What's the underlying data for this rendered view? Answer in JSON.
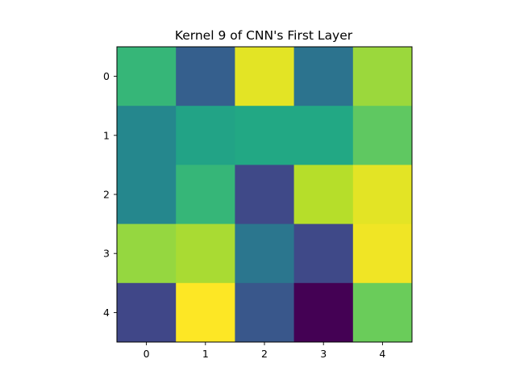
{
  "chart_data": {
    "type": "heatmap",
    "title": "Kernel 9 of CNN's First Layer",
    "colormap": "viridis",
    "xlabel": "",
    "ylabel": "",
    "x_ticks": [
      "0",
      "1",
      "2",
      "3",
      "4"
    ],
    "y_ticks": [
      "0",
      "1",
      "2",
      "3",
      "4"
    ],
    "grid": false,
    "values": [
      [
        0.66,
        0.3,
        0.96,
        0.38,
        0.85
      ],
      [
        0.46,
        0.58,
        0.6,
        0.6,
        0.75
      ],
      [
        0.46,
        0.66,
        0.22,
        0.89,
        0.96
      ],
      [
        0.84,
        0.87,
        0.39,
        0.22,
        0.98
      ],
      [
        0.21,
        1.0,
        0.27,
        0.0,
        0.77
      ]
    ]
  }
}
